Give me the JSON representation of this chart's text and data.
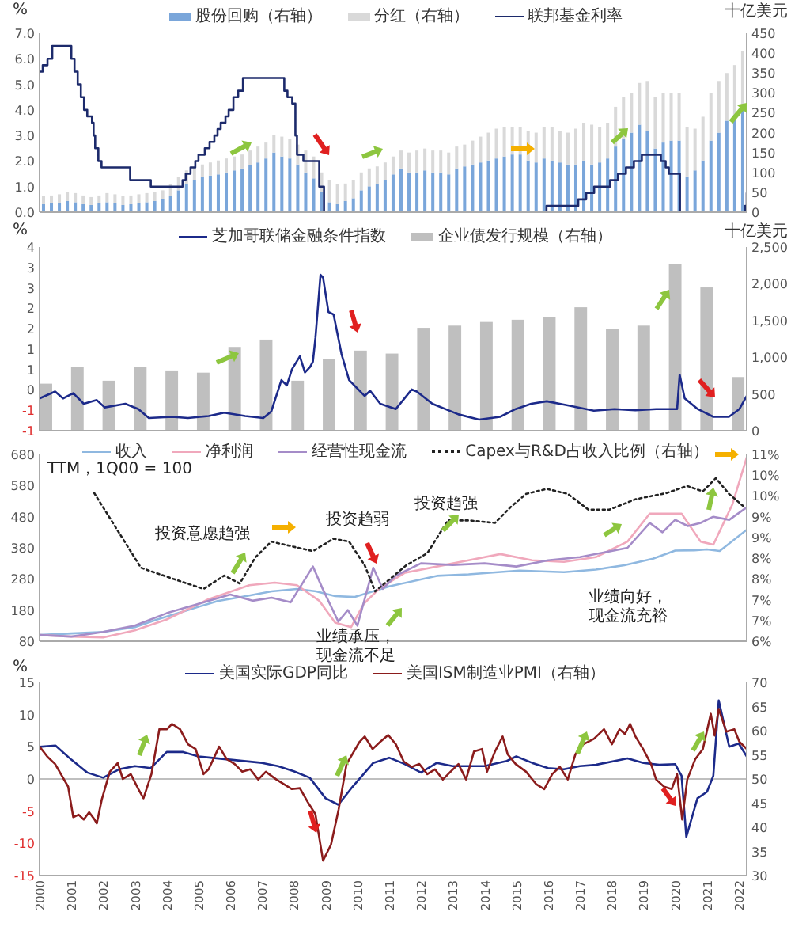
{
  "chart_data": [
    {
      "type": "bar",
      "stacked": true,
      "legend": "top",
      "tick_labels": "y",
      "ylabel": "%",
      "y2label": "十亿美元",
      "xlim": [
        2000,
        2022.25
      ],
      "ylim": [
        0,
        7
      ],
      "yticks": [
        {
          "value": 0,
          "label": "0.0"
        },
        {
          "value": 1,
          "label": "1.0"
        },
        {
          "value": 2,
          "label": "2.0"
        },
        {
          "value": 3,
          "label": "3.0"
        },
        {
          "value": 4,
          "label": "4.0"
        },
        {
          "value": 5,
          "label": "5.0"
        },
        {
          "value": 6,
          "label": "6.0"
        },
        {
          "value": 7,
          "label": "7.0"
        }
      ],
      "y2lim": [
        0,
        450
      ],
      "y2ticks": [
        0,
        50,
        100,
        150,
        200,
        250,
        300,
        350,
        400,
        450
      ],
      "x": [
        2000.125,
        2000.375,
        2000.625,
        2000.875,
        2001.125,
        2001.375,
        2001.625,
        2001.875,
        2002.125,
        2002.375,
        2002.625,
        2002.875,
        2003.125,
        2003.375,
        2003.625,
        2003.875,
        2004.125,
        2004.375,
        2004.625,
        2004.875,
        2005.125,
        2005.375,
        2005.625,
        2005.875,
        2006.125,
        2006.375,
        2006.625,
        2006.875,
        2007.125,
        2007.375,
        2007.625,
        2007.875,
        2008.125,
        2008.375,
        2008.625,
        2008.875,
        2009.125,
        2009.375,
        2009.625,
        2009.875,
        2010.125,
        2010.375,
        2010.625,
        2010.875,
        2011.125,
        2011.375,
        2011.625,
        2011.875,
        2012.125,
        2012.375,
        2012.625,
        2012.875,
        2013.125,
        2013.375,
        2013.625,
        2013.875,
        2014.125,
        2014.375,
        2014.625,
        2014.875,
        2015.125,
        2015.375,
        2015.625,
        2015.875,
        2016.125,
        2016.375,
        2016.625,
        2016.875,
        2017.125,
        2017.375,
        2017.625,
        2017.875,
        2018.125,
        2018.375,
        2018.625,
        2018.875,
        2019.125,
        2019.375,
        2019.625,
        2019.875,
        2020.125,
        2020.375,
        2020.625,
        2020.875,
        2021.125,
        2021.375,
        2021.625,
        2021.875,
        2022.125
      ],
      "series": [
        {
          "name": "股份回购（右轴）",
          "color": "#7aa6da",
          "axis": "y2",
          "values": [
            20,
            22,
            24,
            28,
            25,
            20,
            18,
            22,
            25,
            22,
            18,
            20,
            22,
            25,
            28,
            32,
            40,
            55,
            70,
            80,
            88,
            92,
            95,
            100,
            105,
            110,
            118,
            125,
            135,
            150,
            140,
            135,
            120,
            100,
            85,
            50,
            25,
            20,
            28,
            35,
            55,
            65,
            70,
            80,
            95,
            110,
            100,
            100,
            105,
            100,
            100,
            95,
            110,
            115,
            120,
            125,
            130,
            135,
            140,
            145,
            145,
            130,
            125,
            135,
            130,
            125,
            120,
            120,
            130,
            120,
            125,
            135,
            165,
            185,
            200,
            220,
            205,
            160,
            175,
            180,
            180,
            90,
            105,
            130,
            180,
            200,
            230,
            245,
            270
          ]
        },
        {
          "name": "分红（右轴）",
          "color": "#d9d9d9",
          "axis": "y2",
          "values": [
            20,
            20,
            21,
            22,
            23,
            22,
            20,
            20,
            23,
            23,
            22,
            22,
            23,
            23,
            22,
            23,
            30,
            33,
            35,
            32,
            32,
            33,
            35,
            35,
            35,
            35,
            37,
            40,
            40,
            45,
            50,
            50,
            50,
            55,
            55,
            50,
            55,
            50,
            44,
            45,
            45,
            45,
            45,
            45,
            45,
            45,
            50,
            55,
            55,
            55,
            55,
            55,
            55,
            55,
            60,
            65,
            70,
            75,
            75,
            70,
            70,
            75,
            75,
            80,
            85,
            80,
            80,
            90,
            95,
            100,
            90,
            90,
            100,
            105,
            100,
            105,
            125,
            130,
            125,
            120,
            120,
            125,
            105,
            110,
            120,
            130,
            120,
            125,
            135
          ]
        },
        {
          "name": "联邦基金利率",
          "type": "step",
          "color": "#1c2a6b",
          "x": [
            2000,
            2000.1,
            2000.25,
            2000.4,
            2001,
            2001.1,
            2001.2,
            2001.3,
            2001.4,
            2001.5,
            2001.65,
            2001.7,
            2001.75,
            2001.85,
            2001.95,
            2002.85,
            2003.5,
            2004.5,
            2004.6,
            2004.75,
            2004.9,
            2005,
            2005.2,
            2005.35,
            2005.5,
            2005.6,
            2005.7,
            2005.85,
            2005.95,
            2006.1,
            2006.25,
            2006.4,
            2007.7,
            2007.8,
            2007.95,
            2008.05,
            2008.1,
            2008.3,
            2008.8,
            2008.95,
            2015.95,
            2016.95,
            2017.2,
            2017.45,
            2017.95,
            2018.2,
            2018.45,
            2018.7,
            2018.95,
            2019.55,
            2019.7,
            2019.8,
            2020.15,
            2022.2,
            2022.25
          ],
          "values": [
            5.5,
            5.75,
            6,
            6.5,
            6,
            5.5,
            5,
            4.5,
            4,
            3.75,
            3.5,
            3,
            2.5,
            2,
            1.75,
            1.25,
            1,
            1.25,
            1.5,
            1.75,
            2,
            2.25,
            2.5,
            2.75,
            3,
            3.25,
            3.5,
            3.75,
            4,
            4.5,
            4.75,
            5.25,
            4.75,
            4.5,
            4.25,
            3,
            2.25,
            2,
            1,
            0,
            0.25,
            0.5,
            0.75,
            1,
            1.25,
            1.5,
            1.75,
            2,
            2.25,
            2,
            1.75,
            1.5,
            0,
            0.25,
            0.75
          ]
        }
      ]
    },
    {
      "type": "bar",
      "legend": "top",
      "tick_labels": "y",
      "ylabel": "%",
      "y2label": "十亿美元",
      "xlim": [
        2000,
        2022.25
      ],
      "ylim": [
        -1,
        3.5
      ],
      "yticks": [
        {
          "value": -1,
          "label": "-1"
        },
        {
          "value": -0.5,
          "label": "-1"
        },
        {
          "value": 0,
          "label": "0"
        },
        {
          "value": 0.5,
          "label": "1"
        },
        {
          "value": 1,
          "label": "1"
        },
        {
          "value": 1.5,
          "label": "2"
        },
        {
          "value": 2,
          "label": "2"
        },
        {
          "value": 2.5,
          "label": "3"
        },
        {
          "value": 3,
          "label": "3"
        },
        {
          "value": 3.5,
          "label": "4"
        }
      ],
      "y2lim": [
        0,
        2500
      ],
      "y2ticks": [
        0,
        500,
        {
          "value": 1000,
          "label": "1,000"
        },
        {
          "value": 1500,
          "label": "1,500"
        },
        {
          "value": 2000,
          "label": "2,000"
        },
        {
          "value": 2500,
          "label": "2,500"
        }
      ],
      "x": [
        2000.2,
        2001.19,
        2002.18,
        2003.17,
        2004.16,
        2005.15,
        2006.14,
        2007.13,
        2008.12,
        2009.11,
        2010.1,
        2011.09,
        2012.08,
        2013.07,
        2014.06,
        2015.05,
        2016.04,
        2017.03,
        2018.02,
        2019.01,
        2020,
        2020.99,
        2021.98
      ],
      "series": [
        {
          "name": "芝加哥联储金融条件指数",
          "type": "line",
          "color": "#1c2a8a",
          "x": [
            2000,
            2000.49,
            2000.74,
            2001.06,
            2001.39,
            2001.8,
            2002.05,
            2002.7,
            2003.11,
            2003.44,
            2004.17,
            2004.67,
            2005.32,
            2005.81,
            2006.47,
            2007.04,
            2007.29,
            2007.61,
            2007.78,
            2007.94,
            2008.19,
            2008.35,
            2008.51,
            2008.6,
            2008.68,
            2008.84,
            2008.92,
            2009.09,
            2009.25,
            2009.5,
            2009.74,
            2010.23,
            2010.4,
            2010.72,
            2011.21,
            2011.71,
            2011.87,
            2012.36,
            2013.18,
            2013.83,
            2014.49,
            2014.98,
            2015.47,
            2015.96,
            2016.62,
            2017.44,
            2018.09,
            2018.75,
            2019.4,
            2020.06,
            2020.14,
            2020.3,
            2020.71,
            2021.2,
            2021.69,
            2022.02,
            2022.25
          ],
          "values": [
            -0.21,
            -0.04,
            -0.21,
            -0.08,
            -0.34,
            -0.25,
            -0.43,
            -0.34,
            -0.47,
            -0.69,
            -0.66,
            -0.69,
            -0.64,
            -0.56,
            -0.64,
            -0.69,
            -0.53,
            0.24,
            0.11,
            0.5,
            0.82,
            0.43,
            0.56,
            0.69,
            1.27,
            2.82,
            2.75,
            1.91,
            1.85,
            0.88,
            0.24,
            -0.15,
            -0.02,
            -0.34,
            -0.47,
            0.01,
            -0.04,
            -0.34,
            -0.6,
            -0.73,
            -0.66,
            -0.47,
            -0.34,
            -0.28,
            -0.38,
            -0.51,
            -0.47,
            -0.5,
            -0.47,
            -0.47,
            0.37,
            -0.21,
            -0.47,
            -0.66,
            -0.66,
            -0.47,
            -0.15
          ]
        },
        {
          "name": "企业债发行规模（右轴）",
          "color": "#bfbfbf",
          "axis": "y2",
          "values": [
            640,
            870,
            680,
            870,
            820,
            790,
            1140,
            1240,
            680,
            980,
            1090,
            1050,
            1400,
            1430,
            1480,
            1510,
            1550,
            1680,
            1380,
            1430,
            2270,
            1950,
            730
          ]
        }
      ]
    },
    {
      "type": "line",
      "legend": "top",
      "tick_labels": "y",
      "xlim": [
        2000,
        2022.25
      ],
      "ylim": [
        80,
        680
      ],
      "yticks": [
        80,
        180,
        280,
        380,
        480,
        580,
        680
      ],
      "y2lim": [
        6,
        10.5
      ],
      "y2ticks": [
        {
          "value": 6,
          "label": "6%"
        },
        {
          "value": 6.5,
          "label": "7%"
        },
        {
          "value": 7,
          "label": "7%"
        },
        {
          "value": 7.5,
          "label": "8%"
        },
        {
          "value": 8,
          "label": "8%"
        },
        {
          "value": 8.5,
          "label": "9%"
        },
        {
          "value": 9,
          "label": "9%"
        },
        {
          "value": 9.5,
          "label": "10%"
        },
        {
          "value": 10,
          "label": "10%"
        },
        {
          "value": 10.5,
          "label": "11%"
        }
      ],
      "annotations": [
        "TTM，1Q00 = 100",
        "投资意愿趋强",
        "投资趋弱",
        "投资趋强",
        "业绩向好，现金流充裕",
        "业绩承压，现金流不足"
      ],
      "series": [
        {
          "name": "收入",
          "color": "#8fb8e0",
          "x": [
            2000,
            2001,
            2002,
            2003,
            2003.7,
            2004.5,
            2005.6,
            2006.5,
            2007.3,
            2008.1,
            2008.7,
            2009.3,
            2009.9,
            2011,
            2012.5,
            2013.5,
            2015.1,
            2016.5,
            2017.5,
            2018.4,
            2019.3,
            2020,
            2020.6,
            2021,
            2021.4,
            2022.25
          ],
          "values": [
            100,
            105,
            110,
            125,
            150,
            175,
            209,
            225,
            240,
            248,
            240,
            225,
            222,
            256,
            290,
            295,
            307,
            302,
            310,
            324,
            345,
            371,
            372,
            375,
            370,
            438
          ]
        },
        {
          "name": "净利润",
          "color": "#f0a8bc",
          "x": [
            2000,
            2001,
            2002,
            2003,
            2004,
            2005.3,
            2006.6,
            2007.4,
            2008.1,
            2008.8,
            2009.3,
            2009.8,
            2010.2,
            2010.7,
            2011.5,
            2012.5,
            2013.5,
            2014.5,
            2015.5,
            2016.5,
            2017.5,
            2018.5,
            2019.2,
            2020.2,
            2020.8,
            2021.2,
            2021.8,
            2022.25
          ],
          "values": [
            100,
            95,
            92,
            115,
            150,
            214,
            260,
            268,
            260,
            210,
            140,
            125,
            200,
            250,
            300,
            320,
            340,
            360,
            340,
            335,
            350,
            400,
            490,
            490,
            400,
            390,
            520,
            670
          ]
        },
        {
          "name": "经营性现金流",
          "color": "#a58cc8",
          "x": [
            2000,
            2001,
            2002,
            2003,
            2004,
            2005,
            2006,
            2006.7,
            2007.3,
            2007.9,
            2008.6,
            2008.9,
            2009.4,
            2009.7,
            2010,
            2010.5,
            2010.8,
            2011.2,
            2012,
            2013,
            2014,
            2015,
            2016,
            2017,
            2018,
            2018.5,
            2019.2,
            2019.6,
            2020,
            2020.4,
            2020.8,
            2021.2,
            2021.7,
            2022.25
          ],
          "values": [
            100,
            95,
            110,
            130,
            170,
            200,
            230,
            210,
            220,
            205,
            320,
            250,
            143,
            180,
            130,
            316,
            248,
            290,
            330,
            325,
            330,
            320,
            340,
            350,
            370,
            380,
            460,
            430,
            470,
            450,
            460,
            480,
            470,
            510
          ]
        },
        {
          "name": "Capex与R&D占收入比例（右轴）",
          "color": "#222222",
          "axis": "y2",
          "line_style": "dotted",
          "x": [
            2001.72,
            2003.19,
            2004.17,
            2005.16,
            2005.81,
            2006.3,
            2006.79,
            2007.29,
            2008.6,
            2009.25,
            2009.74,
            2010.23,
            2010.56,
            2011.54,
            2012.2,
            2012.85,
            2013.51,
            2014.33,
            2014.82,
            2015.31,
            2015.96,
            2016.62,
            2017.27,
            2017.93,
            2018.75,
            2019.73,
            2020.38,
            2020.87,
            2021.28,
            2021.69,
            2022.18
          ],
          "values": [
            9.57,
            7.77,
            7.51,
            7.26,
            7.58,
            7.39,
            8.02,
            8.4,
            8.17,
            8.47,
            8.4,
            7.83,
            7.2,
            7.83,
            8.12,
            8.91,
            8.91,
            8.85,
            9.23,
            9.55,
            9.67,
            9.55,
            9.17,
            9.17,
            9.42,
            9.57,
            9.74,
            9.61,
            9.93,
            9.55,
            9.23
          ]
        }
      ]
    },
    {
      "type": "line",
      "legend": "top",
      "ylabel": "%",
      "xlim": [
        2000,
        2022.25
      ],
      "xticks": [
        2000,
        2001,
        2002,
        2003,
        2004,
        2005,
        2006,
        2007,
        2008,
        2009,
        2010,
        2011,
        2012,
        2013,
        2014,
        2015,
        2016,
        2017,
        2018,
        2019,
        2020,
        2021,
        2022
      ],
      "ylim": [
        -15,
        15
      ],
      "yticks": [
        -15,
        -10,
        -5,
        0,
        5,
        10,
        15
      ],
      "y2lim": [
        30,
        70
      ],
      "y2ticks": [
        30,
        35,
        40,
        45,
        50,
        55,
        60,
        65,
        70
      ],
      "ref_lines": [
        {
          "axis": "y",
          "value": 0,
          "color": "#bfbfbf"
        }
      ],
      "series": [
        {
          "name": "美国实际GDP同比",
          "color": "#1c2a8a",
          "x": [
            2000,
            2000.5,
            2001,
            2001.5,
            2002,
            2002.5,
            2003,
            2003.5,
            2004,
            2004.5,
            2005,
            2006,
            2007,
            2007.5,
            2008,
            2008.5,
            2009,
            2009.4,
            2009.8,
            2010.5,
            2011,
            2011.5,
            2012,
            2012.5,
            2013,
            2014,
            2014.7,
            2015,
            2015.5,
            2016,
            2016.5,
            2017,
            2017.5,
            2018.5,
            2019,
            2019.5,
            2020,
            2020.2,
            2020.35,
            2020.7,
            2021,
            2021.2,
            2021.37,
            2021.7,
            2022,
            2022.25
          ],
          "values": [
            5,
            5.2,
            3,
            1,
            0.2,
            1.5,
            2,
            1.7,
            4.2,
            4.2,
            3.5,
            3,
            2.5,
            2,
            1.2,
            0.2,
            -3,
            -4,
            -1.5,
            2.5,
            3.3,
            2.3,
            1,
            2.5,
            2,
            2,
            2.8,
            3.5,
            2.5,
            1.7,
            1.5,
            2,
            2.2,
            3.2,
            2.5,
            2.2,
            2.3,
            0.5,
            -9,
            -3,
            -2,
            0.5,
            12.2,
            5,
            5.5,
            3.5
          ]
        },
        {
          "name": "美国ISM制造业PMI（右轴）",
          "color": "#8b1c1c",
          "axis": "y2",
          "x": [
            2000,
            2000.25,
            2000.49,
            2000.9,
            2001.06,
            2001.23,
            2001.39,
            2001.56,
            2001.72,
            2001.8,
            2001.96,
            2002.21,
            2002.46,
            2002.62,
            2002.87,
            2003.11,
            2003.27,
            2003.52,
            2003.77,
            2004.01,
            2004.17,
            2004.42,
            2004.67,
            2004.91,
            2005.16,
            2005.32,
            2005.65,
            2005.89,
            2006.14,
            2006.38,
            2006.63,
            2006.88,
            2007.12,
            2007.45,
            2007.69,
            2007.94,
            2008.19,
            2008.43,
            2008.68,
            2008.92,
            2009.17,
            2009.41,
            2009.66,
            2010.07,
            2010.23,
            2010.48,
            2010.72,
            2010.97,
            2011.21,
            2011.46,
            2011.71,
            2011.95,
            2012.2,
            2012.44,
            2012.69,
            2012.93,
            2013.18,
            2013.42,
            2013.67,
            2013.92,
            2014.08,
            2014.33,
            2014.57,
            2014.73,
            2014.98,
            2015.31,
            2015.63,
            2015.88,
            2016.13,
            2016.37,
            2016.62,
            2016.86,
            2017.11,
            2017.44,
            2017.76,
            2018.01,
            2018.25,
            2018.42,
            2018.58,
            2018.75,
            2018.99,
            2019.24,
            2019.4,
            2019.65,
            2019.89,
            2020.06,
            2020.22,
            2020.38,
            2020.63,
            2020.87,
            2021.12,
            2021.24,
            2021.37,
            2021.61,
            2021.86,
            2022.02,
            2022.25
          ],
          "values": [
            56.7,
            54.6,
            53.1,
            48.4,
            42.1,
            42.6,
            41.6,
            43.1,
            41.7,
            40.8,
            45.8,
            51.5,
            53.3,
            50,
            51,
            47.9,
            46,
            51,
            60.3,
            60.3,
            61.4,
            60.3,
            57.2,
            56.2,
            51,
            52,
            56.7,
            54.1,
            53.1,
            51.5,
            52,
            49.9,
            51.5,
            49.9,
            48.9,
            47.9,
            48.1,
            45.3,
            42.7,
            33.1,
            36.4,
            43.7,
            53.1,
            57.7,
            58.8,
            56.2,
            57.7,
            59.1,
            57.2,
            53.6,
            52.5,
            53.1,
            51,
            52,
            49.9,
            51.5,
            53.1,
            49.9,
            55.7,
            56.2,
            51.5,
            55.7,
            58.8,
            55.1,
            53.1,
            51.5,
            48.9,
            47.9,
            51,
            52.5,
            49.9,
            55.1,
            57.2,
            58.3,
            60.3,
            57.2,
            60.3,
            59.3,
            61.4,
            58.8,
            56.2,
            53.1,
            49.9,
            48.4,
            47.9,
            51,
            41.6,
            49.9,
            54.1,
            56.2,
            63.5,
            59,
            64.5,
            59.8,
            60.3,
            57.7,
            56.2
          ]
        }
      ]
    }
  ]
}
